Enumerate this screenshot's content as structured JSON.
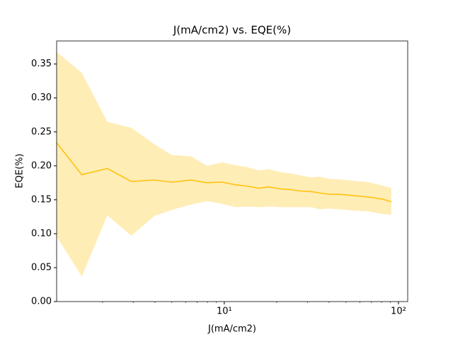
{
  "chart_data": {
    "type": "line",
    "title": "J(mA/cm2) vs. EQE(%)",
    "xlabel": "J(mA/cm2)",
    "ylabel": "EQE(%)",
    "xscale": "log",
    "x": [
      1.09,
      1.52,
      2.13,
      2.93,
      3.96,
      5.0,
      6.44,
      7.98,
      9.72,
      11.6,
      13.6,
      15.8,
      18.0,
      20.9,
      23.9,
      27.2,
      31.6,
      35.4,
      40.0,
      46.0,
      55.5,
      66.9,
      80.7,
      91.0
    ],
    "series": [
      {
        "color": "#ffc20e",
        "values": [
          0.234,
          0.187,
          0.196,
          0.177,
          0.179,
          0.176,
          0.179,
          0.175,
          0.176,
          0.172,
          0.17,
          0.167,
          0.169,
          0.166,
          0.165,
          0.163,
          0.162,
          0.16,
          0.158,
          0.158,
          0.156,
          0.154,
          0.151,
          0.147
        ],
        "upper": [
          0.368,
          0.337,
          0.265,
          0.256,
          0.232,
          0.216,
          0.214,
          0.2,
          0.205,
          0.201,
          0.198,
          0.193,
          0.195,
          0.191,
          0.189,
          0.186,
          0.183,
          0.184,
          0.181,
          0.18,
          0.178,
          0.176,
          0.171,
          0.167
        ],
        "lower": [
          0.096,
          0.037,
          0.127,
          0.097,
          0.126,
          0.135,
          0.143,
          0.148,
          0.144,
          0.139,
          0.14,
          0.139,
          0.14,
          0.139,
          0.139,
          0.139,
          0.139,
          0.136,
          0.137,
          0.136,
          0.134,
          0.133,
          0.129,
          0.128
        ]
      }
    ],
    "xlim": [
      1.09,
      113
    ],
    "xticks": [
      {
        "value": 10,
        "label": "10¹"
      },
      {
        "value": 100,
        "label": "10²"
      }
    ],
    "ylim": [
      0,
      0.384
    ],
    "yticks": [
      {
        "value": 0,
        "label": "0.00"
      },
      {
        "value": 0.05,
        "label": "0.05"
      },
      {
        "value": 0.1,
        "label": "0.10"
      },
      {
        "value": 0.15,
        "label": "0.15"
      },
      {
        "value": 0.2,
        "label": "0.20"
      },
      {
        "value": 0.25,
        "label": "0.25"
      },
      {
        "value": 0.3,
        "label": "0.30"
      },
      {
        "value": 0.35,
        "label": "0.35"
      }
    ]
  }
}
